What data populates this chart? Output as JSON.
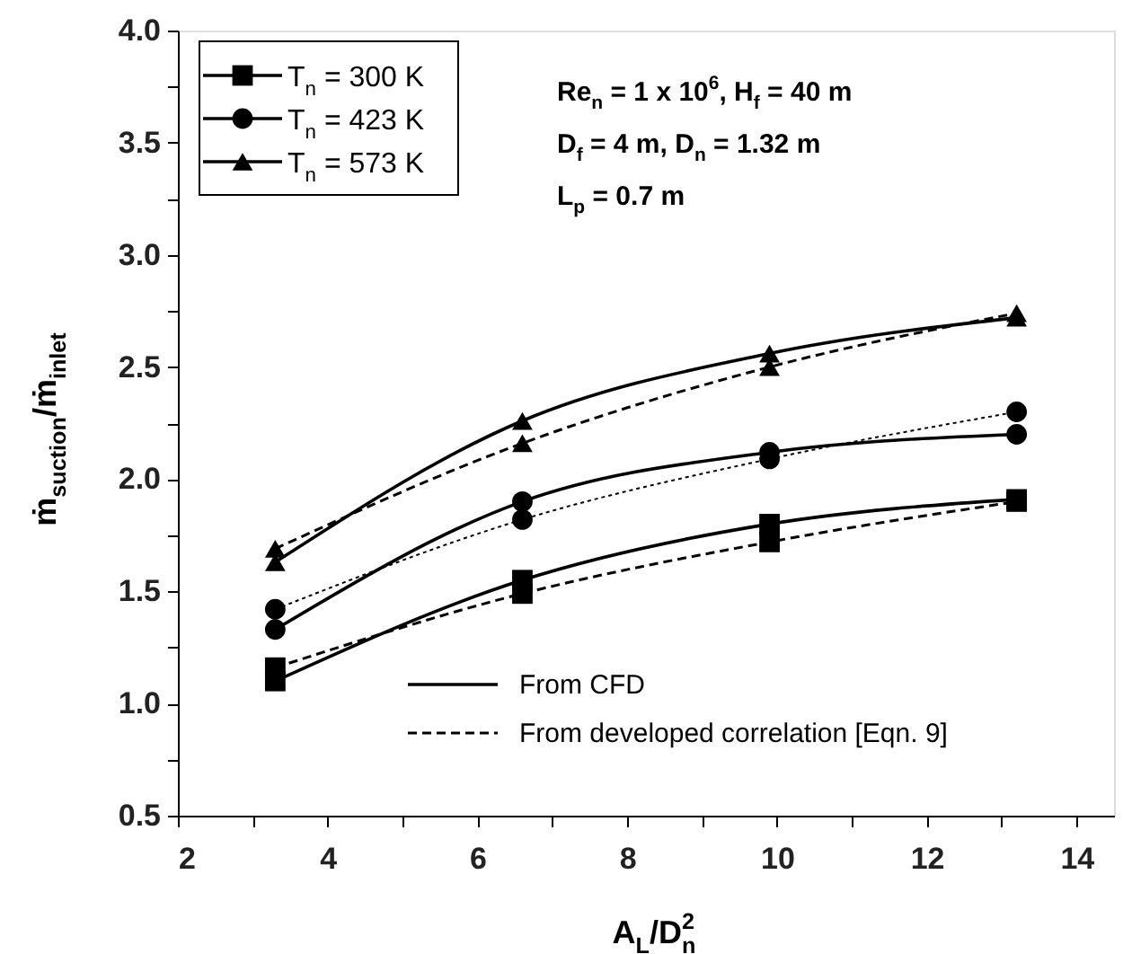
{
  "chart_data": {
    "type": "line",
    "xlabel": "A$_{L}$/D$_{n}$$^{2}$",
    "ylabel": "ṁ$_{suction}$/ṁ$_{inlet}$",
    "x": [
      3.3,
      6.6,
      9.9,
      13.2
    ],
    "xlim": [
      2,
      14.5
    ],
    "xticks": [
      2,
      {
        "value": 3,
        "label": null
      },
      4,
      {
        "value": 5,
        "label": null
      },
      6,
      {
        "value": 7,
        "label": null
      },
      8,
      {
        "value": 9,
        "label": null
      },
      10,
      {
        "value": 11,
        "label": null
      },
      12,
      {
        "value": 13,
        "label": null
      },
      14
    ],
    "ylim": [
      0.5,
      4.0
    ],
    "yticks": [
      0.5,
      {
        "value": 0.75,
        "label": null
      },
      {
        "value": 1.0,
        "label": "1.0"
      },
      {
        "value": 1.25,
        "label": null
      },
      1.5,
      {
        "value": 1.75,
        "label": null
      },
      {
        "value": 2.0,
        "label": "2.0"
      },
      {
        "value": 2.25,
        "label": null
      },
      2.5,
      {
        "value": 2.75,
        "label": null
      },
      {
        "value": 3.0,
        "label": "3.0"
      },
      {
        "value": 3.25,
        "label": null
      },
      3.5,
      {
        "value": 3.75,
        "label": null
      },
      {
        "value": 4.0,
        "label": "4.0"
      }
    ],
    "grid": false,
    "legend": "top left",
    "series": [
      {
        "name": "T$_{n}$ = 300 K",
        "color": "#000000",
        "marker": "square",
        "line_style": "solid",
        "values": [
          1.1,
          1.55,
          1.8,
          1.91
        ]
      },
      {
        "name": "T$_{n}$ = 423 K",
        "color": "#000000",
        "marker": "circle",
        "line_style": "solid",
        "values": [
          1.33,
          1.9,
          2.12,
          2.2
        ]
      },
      {
        "name": "T$_{n}$ = 573 K",
        "color": "#000000",
        "marker": "triangle",
        "line_style": "solid",
        "values": [
          1.63,
          2.26,
          2.56,
          2.72
        ]
      },
      {
        "color": "#000000",
        "marker": "square",
        "line_style": "dashed",
        "values": [
          1.16,
          1.49,
          1.72,
          1.9
        ]
      },
      {
        "color": "#000000",
        "marker": "circle",
        "line_style": "dotted",
        "values": [
          1.42,
          1.82,
          2.09,
          2.3
        ]
      },
      {
        "color": "#000000",
        "marker": "triangle",
        "line_style": "dashed",
        "values": [
          1.69,
          2.16,
          2.5,
          2.74
        ]
      }
    ],
    "annotations": [
      "Re$_{n}$ = 1 x 10$^{6}$, H$_{f}$ = 40 m",
      "D$_{f}$ = 4 m, D$_{n}$ = 1.32 m",
      "L$_{p}$ = 0.7 m",
      "From CFD",
      "From developed correlation [Eqn. 9]"
    ]
  }
}
